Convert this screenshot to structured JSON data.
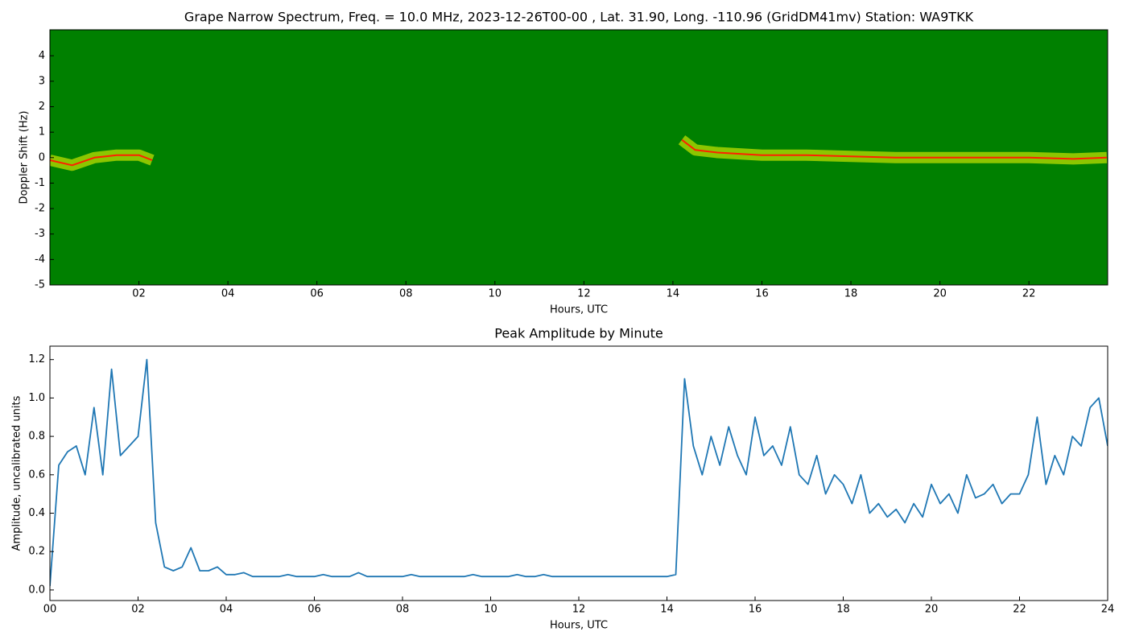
{
  "chart_data": [
    {
      "type": "spectrogram",
      "title": "Grape Narrow Spectrum, Freq. = 10.0 MHz, 2023-12-26T00-00 , Lat.  31.90, Long. -110.96 (GridDM41mv) Station: WA9TKK",
      "x_label": "Hours, UTC",
      "y_label": "Doppler Shift (Hz)",
      "background": "#008000",
      "glow_color": "#ffff00",
      "color": "#ff2000",
      "x": [
        0,
        0.5,
        1,
        1.5,
        2,
        2.3,
        3,
        14.2,
        14.5,
        15,
        15.5,
        16,
        17,
        18,
        19,
        20,
        21,
        22,
        23,
        23.75
      ],
      "values": [
        -0.1,
        -0.3,
        0,
        0.1,
        0.1,
        -0.1,
        null,
        0.7,
        0.3,
        0.2,
        0.15,
        0.1,
        0.1,
        0.05,
        0,
        0,
        0,
        0,
        -0.05,
        0
      ],
      "xlim": [
        0,
        23.77
      ],
      "ylim": [
        -5,
        5.02
      ],
      "xticks": [
        {
          "value": 2,
          "label": "02"
        },
        {
          "value": 4,
          "label": "04"
        },
        {
          "value": 6,
          "label": "06"
        },
        {
          "value": 8,
          "label": "08"
        },
        {
          "value": 10,
          "label": "10"
        },
        {
          "value": 12,
          "label": "12"
        },
        {
          "value": 14,
          "label": "14"
        },
        {
          "value": 16,
          "label": "16"
        },
        {
          "value": 18,
          "label": "18"
        },
        {
          "value": 20,
          "label": "20"
        },
        {
          "value": 22,
          "label": "22"
        }
      ],
      "yticks": [
        -5,
        -4,
        -3,
        -2,
        -1,
        0,
        1,
        2,
        3,
        4
      ]
    },
    {
      "type": "line",
      "title": "Peak Amplitude by Minute",
      "x_label": "Hours, UTC",
      "y_label": "Amplitude, uncalibrated units",
      "color": "#1f77b4",
      "x": [
        0,
        0.2,
        0.4,
        0.6,
        0.8,
        1,
        1.2,
        1.4,
        1.6,
        1.8,
        2,
        2.2,
        2.4,
        2.6,
        2.8,
        3,
        3.2,
        3.4,
        3.6,
        3.8,
        4,
        4.2,
        4.4,
        4.6,
        4.8,
        5,
        5.2,
        5.4,
        5.6,
        5.8,
        6,
        6.2,
        6.4,
        6.6,
        6.8,
        7,
        7.2,
        7.4,
        7.6,
        7.8,
        8,
        8.2,
        8.4,
        8.6,
        8.8,
        9,
        9.2,
        9.4,
        9.6,
        9.8,
        10,
        10.2,
        10.4,
        10.6,
        10.8,
        11,
        11.2,
        11.4,
        11.6,
        11.8,
        12,
        12.2,
        12.4,
        12.6,
        12.8,
        13,
        13.2,
        13.4,
        13.6,
        13.8,
        14,
        14.2,
        14.4,
        14.6,
        14.8,
        15,
        15.2,
        15.4,
        15.6,
        15.8,
        16,
        16.2,
        16.4,
        16.6,
        16.8,
        17,
        17.2,
        17.4,
        17.6,
        17.8,
        18,
        18.2,
        18.4,
        18.6,
        18.8,
        19,
        19.2,
        19.4,
        19.6,
        19.8,
        20,
        20.2,
        20.4,
        20.6,
        20.8,
        21,
        21.2,
        21.4,
        21.6,
        21.8,
        22,
        22.2,
        22.4,
        22.6,
        22.8,
        23,
        23.2,
        23.4,
        23.6,
        23.8,
        24
      ],
      "values": [
        0.02,
        0.65,
        0.72,
        0.75,
        0.6,
        0.95,
        0.6,
        1.15,
        0.7,
        0.75,
        0.8,
        1.2,
        0.35,
        0.12,
        0.1,
        0.12,
        0.22,
        0.1,
        0.1,
        0.12,
        0.08,
        0.08,
        0.09,
        0.07,
        0.07,
        0.07,
        0.07,
        0.08,
        0.07,
        0.07,
        0.07,
        0.08,
        0.07,
        0.07,
        0.07,
        0.09,
        0.07,
        0.07,
        0.07,
        0.07,
        0.07,
        0.08,
        0.07,
        0.07,
        0.07,
        0.07,
        0.07,
        0.07,
        0.08,
        0.07,
        0.07,
        0.07,
        0.07,
        0.08,
        0.07,
        0.07,
        0.08,
        0.07,
        0.07,
        0.07,
        0.07,
        0.07,
        0.07,
        0.07,
        0.07,
        0.07,
        0.07,
        0.07,
        0.07,
        0.07,
        0.07,
        0.08,
        1.1,
        0.75,
        0.6,
        0.8,
        0.65,
        0.85,
        0.7,
        0.6,
        0.9,
        0.7,
        0.75,
        0.65,
        0.85,
        0.6,
        0.55,
        0.7,
        0.5,
        0.6,
        0.55,
        0.45,
        0.6,
        0.4,
        0.45,
        0.38,
        0.42,
        0.35,
        0.45,
        0.38,
        0.55,
        0.45,
        0.5,
        0.4,
        0.6,
        0.48,
        0.5,
        0.55,
        0.45,
        0.5,
        0.5,
        0.6,
        0.9,
        0.55,
        0.7,
        0.6,
        0.8,
        0.75,
        0.95,
        1.0,
        0.75
      ],
      "xlim": [
        0,
        24
      ],
      "ylim": [
        -0.055,
        1.27
      ],
      "xticks": [
        {
          "value": 0,
          "label": "00"
        },
        {
          "value": 2,
          "label": "02"
        },
        {
          "value": 4,
          "label": "04"
        },
        {
          "value": 6,
          "label": "06"
        },
        {
          "value": 8,
          "label": "08"
        },
        {
          "value": 10,
          "label": "10"
        },
        {
          "value": 12,
          "label": "12"
        },
        {
          "value": 14,
          "label": "14"
        },
        {
          "value": 16,
          "label": "16"
        },
        {
          "value": 18,
          "label": "18"
        },
        {
          "value": 20,
          "label": "20"
        },
        {
          "value": 22,
          "label": "22"
        },
        {
          "value": 24,
          "label": "24"
        }
      ],
      "yticks": [
        {
          "value": 0,
          "label": "0.0"
        },
        0.2,
        0.4,
        0.6,
        0.8,
        {
          "value": 1,
          "label": "1.0"
        },
        1.2
      ]
    }
  ]
}
